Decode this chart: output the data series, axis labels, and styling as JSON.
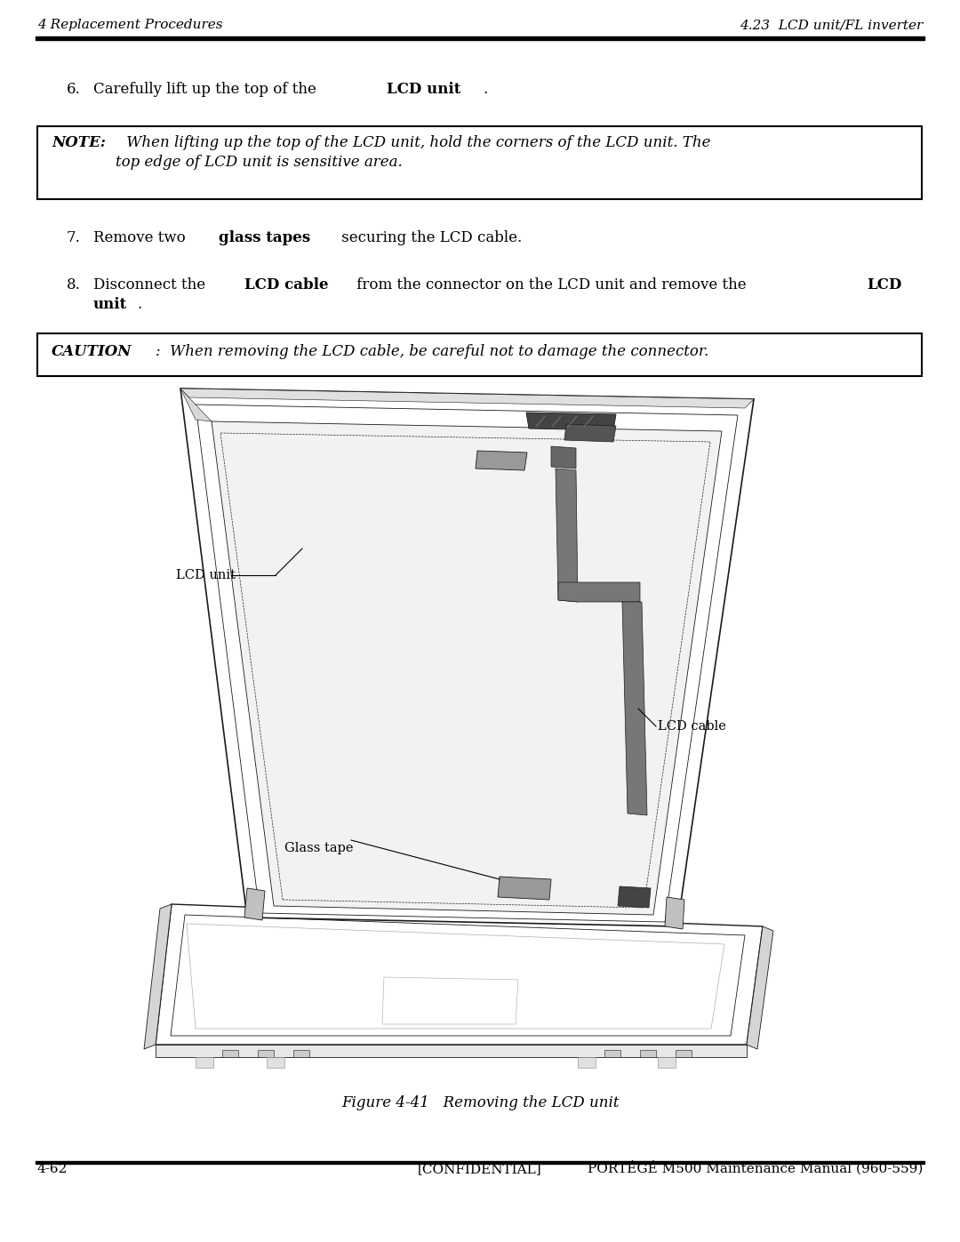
{
  "bg_color": "#ffffff",
  "header_left": "4 Replacement Procedures",
  "header_right": "4.23  LCD unit/FL inverter",
  "footer_left": "4-62",
  "footer_center": "[CONFIDENTIAL]",
  "footer_right": "PORTÉGÉ M500 Maintenance Manual (960-559)",
  "note_label": "NOTE:",
  "note_text_line1": " When lifting up the top of the LCD unit, hold the corners of the LCD unit. The",
  "note_text_line2": "top edge of LCD unit is sensitive area.",
  "caution_label": "CAUTION",
  "caution_text": ":  When removing the LCD cable, be careful not to damage the connector.",
  "fig_caption": "Figure 4-41   Removing the LCD unit",
  "label_lcd_unit": "LCD unit",
  "label_glass_tape": "Glass tape",
  "label_lcd_cable": "LCD cable",
  "font_family": "DejaVu Serif",
  "header_fontsize": 11,
  "body_fontsize": 12,
  "note_fontsize": 12,
  "caption_fontsize": 12,
  "footer_fontsize": 11
}
